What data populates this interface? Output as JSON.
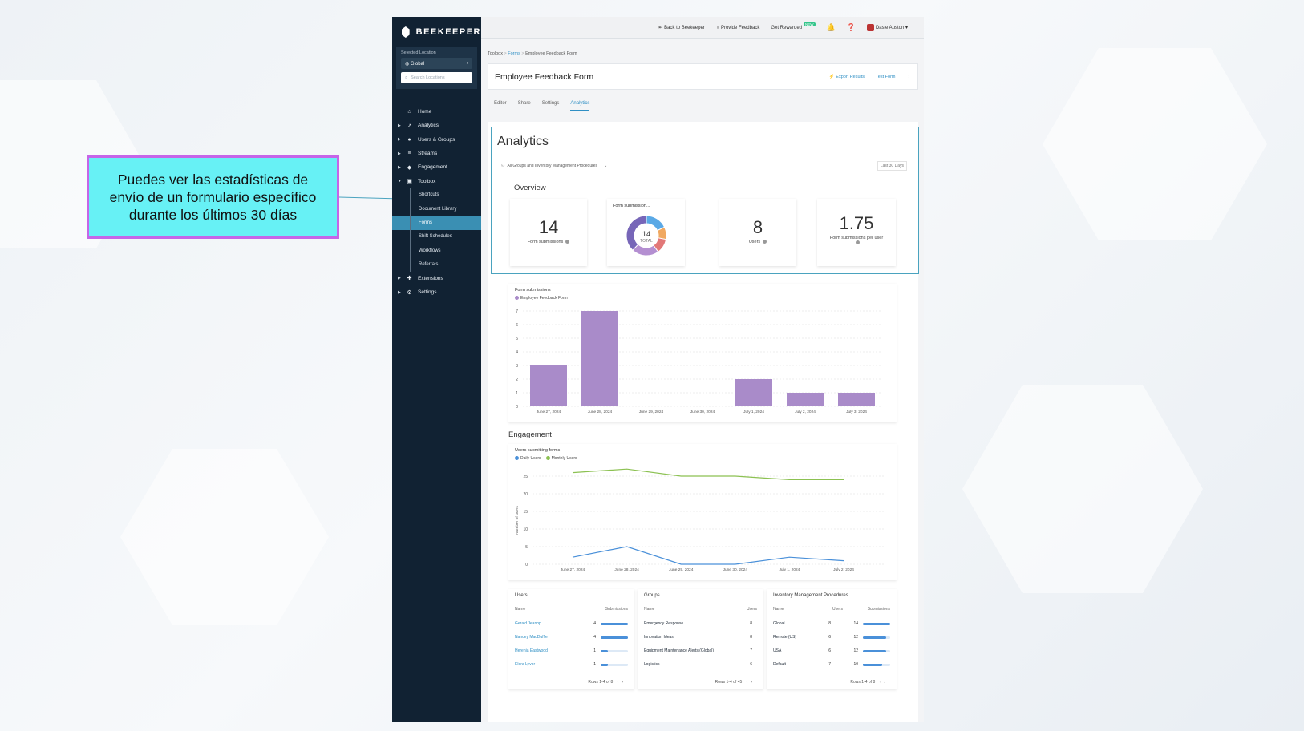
{
  "callout": {
    "text": "Puedes ver las estadísticas de envío de un formulario específico durante los últimos 30 días"
  },
  "brand": "BEEKEEPER",
  "sidebar": {
    "location_label": "Selected Location",
    "location_value": "Global",
    "search_placeholder": "Search Locations",
    "items": [
      {
        "label": "Home",
        "icon": "home-icon"
      },
      {
        "label": "Analytics",
        "icon": "trend-icon"
      },
      {
        "label": "Users & Groups",
        "icon": "users-icon"
      },
      {
        "label": "Streams",
        "icon": "streams-icon"
      },
      {
        "label": "Engagement",
        "icon": "megaphone-icon"
      },
      {
        "label": "Toolbox",
        "icon": "toolbox-icon"
      }
    ],
    "toolbox_sub": [
      "Shortcuts",
      "Document Library",
      "Forms",
      "Shift Schedules",
      "Workflows",
      "Referrals"
    ],
    "bottom_items": [
      {
        "label": "Extensions",
        "icon": "puzzle-icon"
      },
      {
        "label": "Settings",
        "icon": "gear-icon"
      }
    ]
  },
  "topbar": {
    "back": "Back to Beekeeper",
    "feedback": "Provide Feedback",
    "rewarded": "Get Rewarded",
    "new_badge": "NEW",
    "user": "Dasie Auston"
  },
  "breadcrumb": {
    "root": "Toolbox",
    "forms": "Forms",
    "current": "Employee Feedback Form"
  },
  "page": {
    "title": "Employee Feedback Form",
    "export": "Export Results",
    "test": "Test Form",
    "tabs": [
      "Editor",
      "Share",
      "Settings",
      "Analytics"
    ]
  },
  "analytics": {
    "title": "Analytics",
    "filter": "All Groups and Inventory Management Procedures",
    "range": "Last 30 Days",
    "overview_title": "Overview",
    "stats": {
      "submissions_value": "14",
      "submissions_label": "Form submissions",
      "donut_title": "Form submission...",
      "donut_total": "14",
      "donut_total_label": "TOTAL",
      "users_value": "8",
      "users_label": "Users",
      "per_user_value": "1.75",
      "per_user_label": "Form submissions per user"
    },
    "donut_colors": [
      "#5aa9e6",
      "#f0a860",
      "#e27878",
      "#b48fd1",
      "#7766b8"
    ]
  },
  "chart_data": [
    {
      "type": "bar",
      "title": "Form submissions",
      "categories": [
        "June 27, 2024",
        "June 28, 2024",
        "June 29, 2024",
        "June 30, 2024",
        "July 1, 2024",
        "July 2, 2024",
        "July 3, 2024"
      ],
      "series": [
        {
          "name": "Employee Feedback Form",
          "values": [
            3,
            7,
            0,
            0,
            2,
            1,
            1
          ],
          "color": "#a98bc9"
        }
      ],
      "ylim": [
        0,
        7
      ],
      "yticks": [
        "0",
        "1",
        "2",
        "3",
        "4",
        "5",
        "6",
        "7"
      ],
      "grid": true,
      "legend": "top-left"
    },
    {
      "type": "line",
      "title": "Users submitting forms",
      "ylabel": "Number of users",
      "categories": [
        "June 27, 2024",
        "June 28, 2024",
        "June 29, 2024",
        "June 30, 2024",
        "July 1, 2024",
        "July 2, 2024"
      ],
      "x_points": 8,
      "series": [
        {
          "name": "Daily Users",
          "values": [
            2,
            5,
            0,
            0,
            2,
            1
          ],
          "color": "#4a90d9"
        },
        {
          "name": "Monthly Users",
          "values": [
            26,
            27,
            25,
            25,
            24,
            24
          ],
          "color": "#8cc152"
        }
      ],
      "ylim": [
        0,
        25
      ],
      "yticks": [
        "0",
        "5",
        "10",
        "15",
        "20",
        "25"
      ],
      "grid": true,
      "legend": "top-left"
    }
  ],
  "engagement_title": "Engagement",
  "tables": {
    "users": {
      "title": "Users",
      "col1": "Name",
      "col2": "Submissions",
      "rows": [
        {
          "name": "Gerald Jeanop",
          "value": "4",
          "fill": 1.0
        },
        {
          "name": "Nancey MacDuffie",
          "value": "4",
          "fill": 1.0
        },
        {
          "name": "Herenia Eastwood",
          "value": "1",
          "fill": 0.25
        },
        {
          "name": "Elora Lyvor",
          "value": "1",
          "fill": 0.25
        }
      ],
      "footer": "Rows 1-4 of 8"
    },
    "groups": {
      "title": "Groups",
      "col1": "Name",
      "col2": "Users",
      "rows": [
        {
          "name": "Emergency Response",
          "value": "8"
        },
        {
          "name": "Innovation Ideas",
          "value": "8"
        },
        {
          "name": "Equipment Maintenance Alerts (Global)",
          "value": "7"
        },
        {
          "name": "Logistics",
          "value": "6"
        }
      ],
      "footer": "Rows 1-4 of 45"
    },
    "inventory": {
      "title": "Inventory Management Procedures",
      "col1": "Name",
      "col2": "Users",
      "col3": "Submissions",
      "rows": [
        {
          "name": "Global",
          "users": "8",
          "value": "14",
          "fill": 1.0
        },
        {
          "name": "Remote (US)",
          "users": "6",
          "value": "12",
          "fill": 0.86
        },
        {
          "name": "USA",
          "users": "6",
          "value": "12",
          "fill": 0.86
        },
        {
          "name": "Default",
          "users": "7",
          "value": "10",
          "fill": 0.71
        }
      ],
      "footer": "Rows 1-4 of 8"
    }
  }
}
